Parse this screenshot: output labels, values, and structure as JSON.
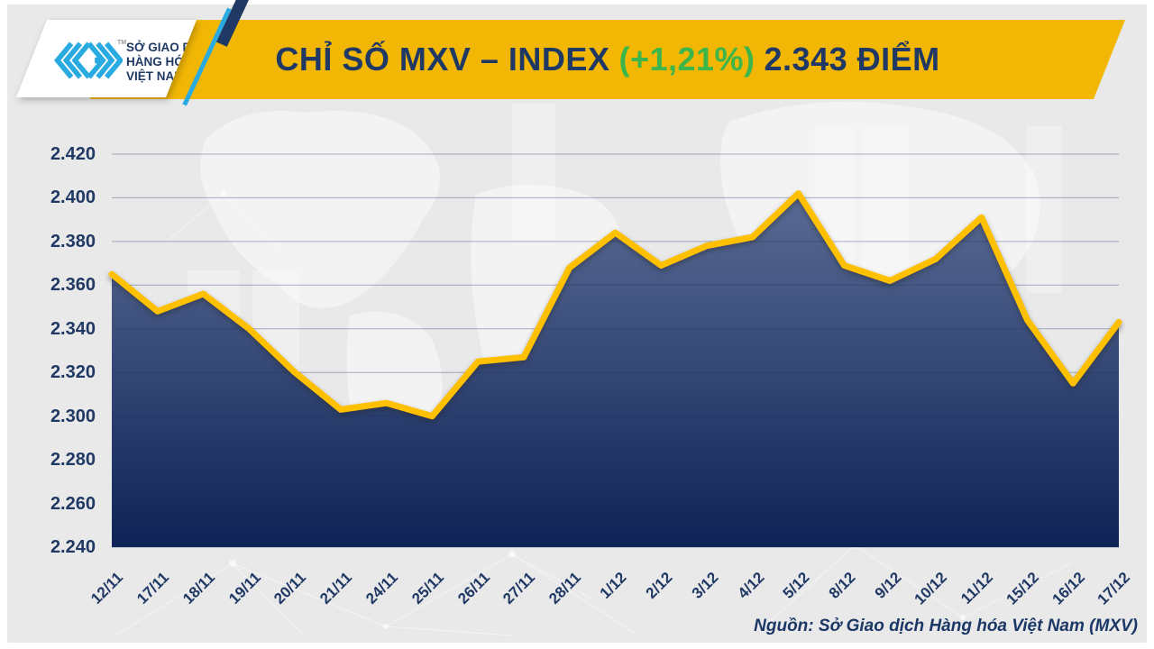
{
  "header": {
    "title_prefix": "CHỈ SỐ MXV – INDEX",
    "title_change": "(+1,21%)",
    "title_points": "2.343 ĐIỂM",
    "banner_color": "#F2B705",
    "title_color": "#1F3864",
    "change_color": "#3CB54A"
  },
  "logo": {
    "tm": "TM",
    "line1": "SỞ GIAO DỊCH",
    "line2": "HÀNG HÓA",
    "line3": "VIỆT NAM",
    "mark_color": "#29ABE2"
  },
  "footer": {
    "source": "Nguồn: Sở Giao dịch Hàng hóa Việt Nam (MXV)"
  },
  "chart_data": {
    "type": "area",
    "title": "CHỈ SỐ MXV – INDEX (+1,21%) 2.343 ĐIỂM",
    "categories": [
      "12/11",
      "17/11",
      "18/11",
      "19/11",
      "20/11",
      "21/11",
      "24/11",
      "25/11",
      "26/11",
      "27/11",
      "28/11",
      "1/12",
      "2/12",
      "3/12",
      "4/12",
      "5/12",
      "8/12",
      "9/12",
      "10/12",
      "11/12",
      "15/12",
      "16/12",
      "17/12"
    ],
    "values": [
      2.365,
      2.348,
      2.356,
      2.34,
      2.32,
      2.303,
      2.306,
      2.3,
      2.325,
      2.327,
      2.368,
      2.384,
      2.369,
      2.378,
      2.382,
      2.402,
      2.369,
      2.362,
      2.372,
      2.391,
      2.344,
      2.315,
      2.343
    ],
    "xlabel": "",
    "ylabel": "",
    "ylim": [
      2.24,
      2.42
    ],
    "ytick_step": 0.02,
    "ytick_labels": [
      "2.420",
      "2.400",
      "2.380",
      "2.360",
      "2.340",
      "2.320",
      "2.300",
      "2.280",
      "2.260",
      "2.240"
    ],
    "grid": "horizontal",
    "legend": "none",
    "line_color": "#FFC000",
    "fill_gradient": [
      "#5A6B94",
      "#0E2356"
    ],
    "grid_color": "rgba(31,56,100,0.38)"
  }
}
